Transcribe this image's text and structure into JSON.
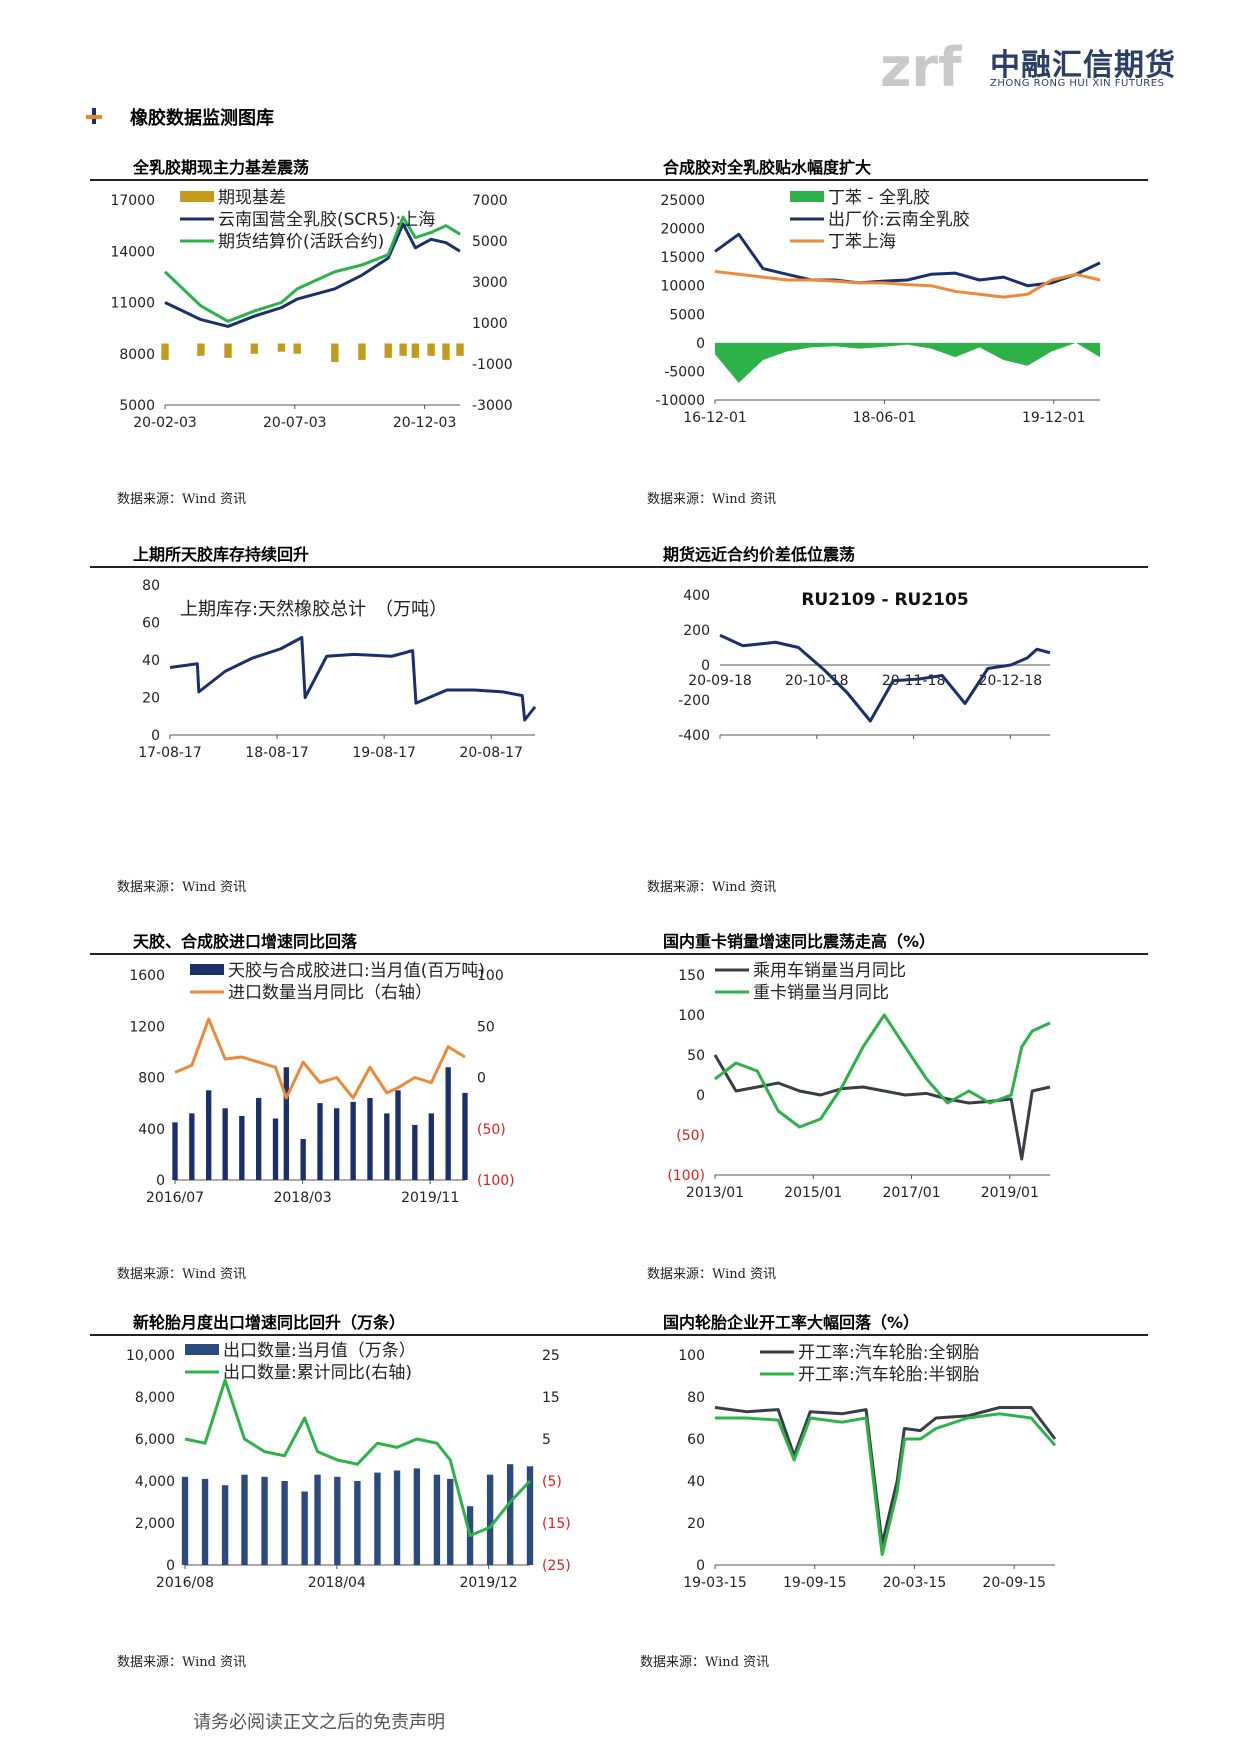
{
  "header": {
    "logo_mark": "zrf",
    "logo_name": "中融汇信期货",
    "logo_sub": "ZHONG RONG HUI XIN FUTURES",
    "section_title": "橡胶数据监测图库"
  },
  "footer": {
    "disclaimer": "请务必阅读正文之后的免责声明"
  },
  "charts": [
    {
      "title": "全乳胶期现主力基差震荡",
      "source": "数据来源：Wind 资讯"
    },
    {
      "title": "合成胶对全乳胶贴水幅度扩大",
      "source": "数据来源：Wind 资讯"
    },
    {
      "title": "上期所天胶库存持续回升",
      "source": "数据来源：Wind 资讯"
    },
    {
      "title": "期货远近合约价差低位震荡",
      "source": "数据来源：Wind 资讯"
    },
    {
      "title": "天胶、合成胶进口增速同比回落",
      "source": "数据来源：Wind 资讯"
    },
    {
      "title": "国内重卡销量增速同比震荡走高（%）",
      "source": "数据来源：Wind 资讯"
    },
    {
      "title": "新轮胎月度出口增速同比回升（万条）",
      "source": "数据来源：Wind 资讯"
    },
    {
      "title": "国内轮胎企业开工率大幅回落（%）",
      "source": "数据来源：Wind 资讯"
    }
  ],
  "colors": {
    "navy": "#1b2f6b",
    "green": "#2db24a",
    "orange": "#ed8a3a",
    "gold": "#c49a1a",
    "red": "#e02020",
    "darkgray": "#3a3d45"
  },
  "chart_data": [
    {
      "type": "line",
      "id": "c1",
      "xticks": [
        "20-02-03",
        "20-07-03",
        "20-12-03"
      ],
      "x": [
        "2020-02-03",
        "2020-03-15",
        "2020-04-15",
        "2020-05-15",
        "2020-06-15",
        "2020-07-03",
        "2020-08-15",
        "2020-09-15",
        "2020-10-15",
        "2020-11-01",
        "2020-11-15",
        "2020-12-03",
        "2020-12-20",
        "2021-01-05"
      ],
      "yleft": {
        "ticks": [
          5000,
          8000,
          11000,
          14000,
          17000
        ],
        "range": [
          5000,
          17000
        ]
      },
      "yright": {
        "ticks": [
          -3000,
          -1000,
          1000,
          3000,
          5000,
          7000
        ],
        "range": [
          -3000,
          7000
        ]
      },
      "series": [
        {
          "name": "期现基差",
          "axis": "right",
          "kind": "bar",
          "color": "#c49a1a",
          "values": [
            -800,
            -600,
            -700,
            -500,
            -400,
            -500,
            -900,
            -800,
            -700,
            -600,
            -700,
            -600,
            -800,
            -600
          ]
        },
        {
          "name": "云南国营全乳胶(SCR5):上海",
          "axis": "left",
          "kind": "line",
          "color": "#1b2f6b",
          "values": [
            11000,
            10000,
            9600,
            10200,
            10700,
            11200,
            11800,
            12600,
            13600,
            15600,
            14200,
            14700,
            14500,
            14000
          ]
        },
        {
          "name": "期货结算价(活跃合约)",
          "axis": "left",
          "kind": "line",
          "color": "#2db24a",
          "values": [
            12800,
            10800,
            9900,
            10500,
            11000,
            11800,
            12800,
            13200,
            13800,
            16000,
            14800,
            15100,
            15500,
            15000
          ]
        }
      ]
    },
    {
      "type": "line",
      "id": "c2",
      "xticks": [
        "16-12-01",
        "18-06-01",
        "19-12-01"
      ],
      "x": [
        "2016-12-01",
        "2017-03-01",
        "2017-06-01",
        "2017-09-01",
        "2017-12-01",
        "2018-03-01",
        "2018-06-01",
        "2018-09-01",
        "2018-12-01",
        "2019-03-01",
        "2019-06-01",
        "2019-09-01",
        "2019-12-01",
        "2020-03-01",
        "2020-06-01",
        "2020-09-01",
        "2020-12-01"
      ],
      "yleft": {
        "ticks": [
          -10000,
          -5000,
          0,
          5000,
          10000,
          15000,
          20000,
          25000
        ],
        "range": [
          -10000,
          25000
        ]
      },
      "series": [
        {
          "name": "丁苯 - 全乳胶",
          "kind": "area",
          "color": "#2db24a",
          "values": [
            -2000,
            -7000,
            -3000,
            -1500,
            -800,
            -600,
            -1000,
            -700,
            -300,
            -1000,
            -2500,
            -800,
            -3000,
            -4000,
            -1500,
            0,
            -2500
          ]
        },
        {
          "name": "出厂价:云南全乳胶",
          "kind": "line",
          "color": "#1b2f6b",
          "values": [
            16000,
            19000,
            13000,
            12000,
            11000,
            11000,
            10500,
            10800,
            11000,
            12000,
            12200,
            11000,
            11500,
            10000,
            10500,
            12000,
            14000
          ]
        },
        {
          "name": "丁苯上海",
          "kind": "line",
          "color": "#ed8a3a",
          "values": [
            12500,
            12000,
            11500,
            11000,
            11000,
            10800,
            10500,
            10500,
            10200,
            10000,
            9000,
            8500,
            8000,
            8500,
            11000,
            12000,
            11000
          ]
        }
      ]
    },
    {
      "type": "line",
      "id": "c3",
      "annotation": "上期库存:天然橡胶总计　（万吨）",
      "xticks": [
        "17-08-17",
        "18-08-17",
        "19-08-17",
        "20-08-17"
      ],
      "x": [
        "2017-08-17",
        "2017-11-15",
        "2017-11-20",
        "2018-02-15",
        "2018-05-15",
        "2018-08-17",
        "2018-10-25",
        "2018-11-05",
        "2019-01-15",
        "2019-04-15",
        "2019-08-17",
        "2019-10-25",
        "2019-11-05",
        "2020-02-15",
        "2020-05-15",
        "2020-08-17",
        "2020-10-20",
        "2020-10-28",
        "2020-12-01"
      ],
      "yleft": {
        "ticks": [
          0,
          20,
          40,
          60,
          80
        ],
        "range": [
          0,
          80
        ]
      },
      "series": [
        {
          "name": "上期库存:天然橡胶总计",
          "kind": "line",
          "color": "#1b2f6b",
          "values": [
            36,
            38,
            23,
            34,
            41,
            46,
            52,
            20,
            42,
            43,
            42,
            45,
            17,
            24,
            24,
            23,
            21,
            8,
            15
          ]
        }
      ]
    },
    {
      "type": "line",
      "id": "c4",
      "title": "RU2109 - RU2105",
      "xticks": [
        "20-09-18",
        "20-10-18",
        "20-11-18",
        "20-12-18"
      ],
      "x": [
        "2020-09-18",
        "2020-09-25",
        "2020-10-05",
        "2020-10-12",
        "2020-10-20",
        "2020-10-27",
        "2020-11-03",
        "2020-11-10",
        "2020-11-18",
        "2020-11-25",
        "2020-12-02",
        "2020-12-09",
        "2020-12-16",
        "2020-12-21",
        "2020-12-24",
        "2020-12-28"
      ],
      "yleft": {
        "ticks": [
          -400,
          -200,
          0,
          200,
          400
        ],
        "range": [
          -400,
          400
        ]
      },
      "series": [
        {
          "name": "RU2109 - RU2105",
          "kind": "line",
          "color": "#1b2f6b",
          "values": [
            170,
            110,
            130,
            100,
            -30,
            -160,
            -320,
            -90,
            -80,
            -60,
            -220,
            -20,
            0,
            40,
            90,
            70
          ]
        }
      ]
    },
    {
      "type": "bar",
      "id": "c5",
      "xticks": [
        "2016/07",
        "2018/03",
        "2019/11"
      ],
      "x": [
        "2016/07",
        "2016/10",
        "2017/01",
        "2017/04",
        "2017/07",
        "2017/10",
        "2018/01",
        "2018/03",
        "2018/06",
        "2018/09",
        "2018/12",
        "2019/03",
        "2019/06",
        "2019/09",
        "2019/11",
        "2020/02",
        "2020/05",
        "2020/08",
        "2020/11"
      ],
      "yleft": {
        "ticks": [
          0,
          400,
          800,
          1200,
          1600
        ],
        "range": [
          0,
          1600
        ]
      },
      "yright": {
        "ticks": [
          -100,
          -50,
          0,
          50,
          100
        ],
        "ticklabels": [
          "(100)",
          "(50)",
          "0",
          "50",
          "100"
        ],
        "range": [
          -100,
          100
        ]
      },
      "series": [
        {
          "name": "天胶与合成胶进口:当月值(百万吨)",
          "axis": "left",
          "kind": "bar",
          "color": "#1b2f6b",
          "values": [
            450,
            520,
            700,
            560,
            500,
            640,
            480,
            880,
            320,
            600,
            560,
            610,
            640,
            520,
            700,
            430,
            520,
            880,
            680
          ]
        },
        {
          "name": "进口数量当月同比（右轴）",
          "axis": "right",
          "kind": "line",
          "color": "#ed8a3a",
          "values": [
            5,
            12,
            57,
            18,
            20,
            15,
            10,
            -20,
            15,
            -5,
            0,
            -20,
            10,
            -15,
            -10,
            0,
            -5,
            30,
            20
          ]
        }
      ]
    },
    {
      "type": "line",
      "id": "c6",
      "xticks": [
        "2013/01",
        "2015/01",
        "2017/01",
        "2019/01"
      ],
      "x": [
        "2013/01",
        "2013/07",
        "2014/01",
        "2014/07",
        "2015/01",
        "2015/07",
        "2016/01",
        "2016/07",
        "2017/01",
        "2017/07",
        "2018/01",
        "2018/07",
        "2019/01",
        "2019/07",
        "2020/01",
        "2020/04",
        "2020/07",
        "2020/12"
      ],
      "yleft": {
        "ticks": [
          -100,
          -50,
          0,
          50,
          100,
          150
        ],
        "ticklabels": [
          "(100)",
          "(50)",
          "0",
          "50",
          "100",
          "150"
        ],
        "range": [
          -100,
          150
        ]
      },
      "series": [
        {
          "name": "乘用车销量当月同比",
          "kind": "line",
          "color": "#3a3d45",
          "values": [
            50,
            5,
            10,
            15,
            5,
            0,
            8,
            10,
            5,
            0,
            2,
            -5,
            -10,
            -8,
            -5,
            -80,
            5,
            10
          ]
        },
        {
          "name": "重卡销量当月同比",
          "kind": "line",
          "color": "#2db24a",
          "values": [
            20,
            40,
            30,
            -20,
            -40,
            -30,
            10,
            60,
            100,
            60,
            20,
            -10,
            5,
            -10,
            0,
            60,
            80,
            90
          ]
        }
      ]
    },
    {
      "type": "bar",
      "id": "c7",
      "xticks": [
        "2016/08",
        "2018/04",
        "2019/12"
      ],
      "x": [
        "2016/08",
        "2016/11",
        "2017/02",
        "2017/05",
        "2017/08",
        "2017/11",
        "2018/02",
        "2018/04",
        "2018/07",
        "2018/10",
        "2019/01",
        "2019/04",
        "2019/07",
        "2019/10",
        "2019/12",
        "2020/03",
        "2020/06",
        "2020/09",
        "2020/12"
      ],
      "yleft": {
        "ticks": [
          0,
          2000,
          4000,
          6000,
          8000,
          10000
        ],
        "ticklabels": [
          "0",
          "2,000",
          "4,000",
          "6,000",
          "8,000",
          "10,000"
        ],
        "range": [
          0,
          10000
        ]
      },
      "yright": {
        "ticks": [
          -25,
          -15,
          -5,
          5,
          15,
          25
        ],
        "ticklabels": [
          "(25)",
          "(15)",
          "(5)",
          "5",
          "15",
          "25"
        ],
        "range": [
          -25,
          25
        ]
      },
      "series": [
        {
          "name": "出口数量:当月值（万条）",
          "axis": "left",
          "kind": "bar",
          "color": "#2a4a80",
          "values": [
            4200,
            4100,
            3800,
            4300,
            4200,
            4000,
            3500,
            4300,
            4200,
            4000,
            4400,
            4500,
            4600,
            4300,
            4100,
            2800,
            4300,
            4800,
            4700
          ]
        },
        {
          "name": "出口数量:累计同比(右轴)",
          "axis": "right",
          "kind": "line",
          "color": "#2db24a",
          "values": [
            5,
            4,
            19,
            5,
            2,
            1,
            10,
            2,
            0,
            -1,
            4,
            3,
            5,
            4,
            0,
            -18,
            -16,
            -10,
            -5
          ]
        }
      ]
    },
    {
      "type": "line",
      "id": "c8",
      "xticks": [
        "19-03-15",
        "19-09-15",
        "20-03-15",
        "20-09-15"
      ],
      "x": [
        "2019-03-15",
        "2019-05-15",
        "2019-07-15",
        "2019-08-15",
        "2019-09-15",
        "2019-11-15",
        "2020-01-01",
        "2020-02-01",
        "2020-03-01",
        "2020-03-15",
        "2020-04-15",
        "2020-05-15",
        "2020-07-15",
        "2020-09-15",
        "2020-11-15",
        "2020-12-31"
      ],
      "yleft": {
        "ticks": [
          0,
          20,
          40,
          60,
          80,
          100
        ],
        "range": [
          0,
          100
        ]
      },
      "series": [
        {
          "name": "开工率:汽车轮胎:全钢胎",
          "kind": "line",
          "color": "#3a3d45",
          "values": [
            75,
            73,
            74,
            52,
            73,
            72,
            74,
            10,
            40,
            65,
            64,
            70,
            71,
            75,
            75,
            60
          ]
        },
        {
          "name": "开工率:汽车轮胎:半钢胎",
          "kind": "line",
          "color": "#2db24a",
          "values": [
            70,
            70,
            69,
            50,
            70,
            68,
            70,
            5,
            35,
            60,
            60,
            65,
            70,
            72,
            70,
            57
          ]
        }
      ]
    }
  ]
}
